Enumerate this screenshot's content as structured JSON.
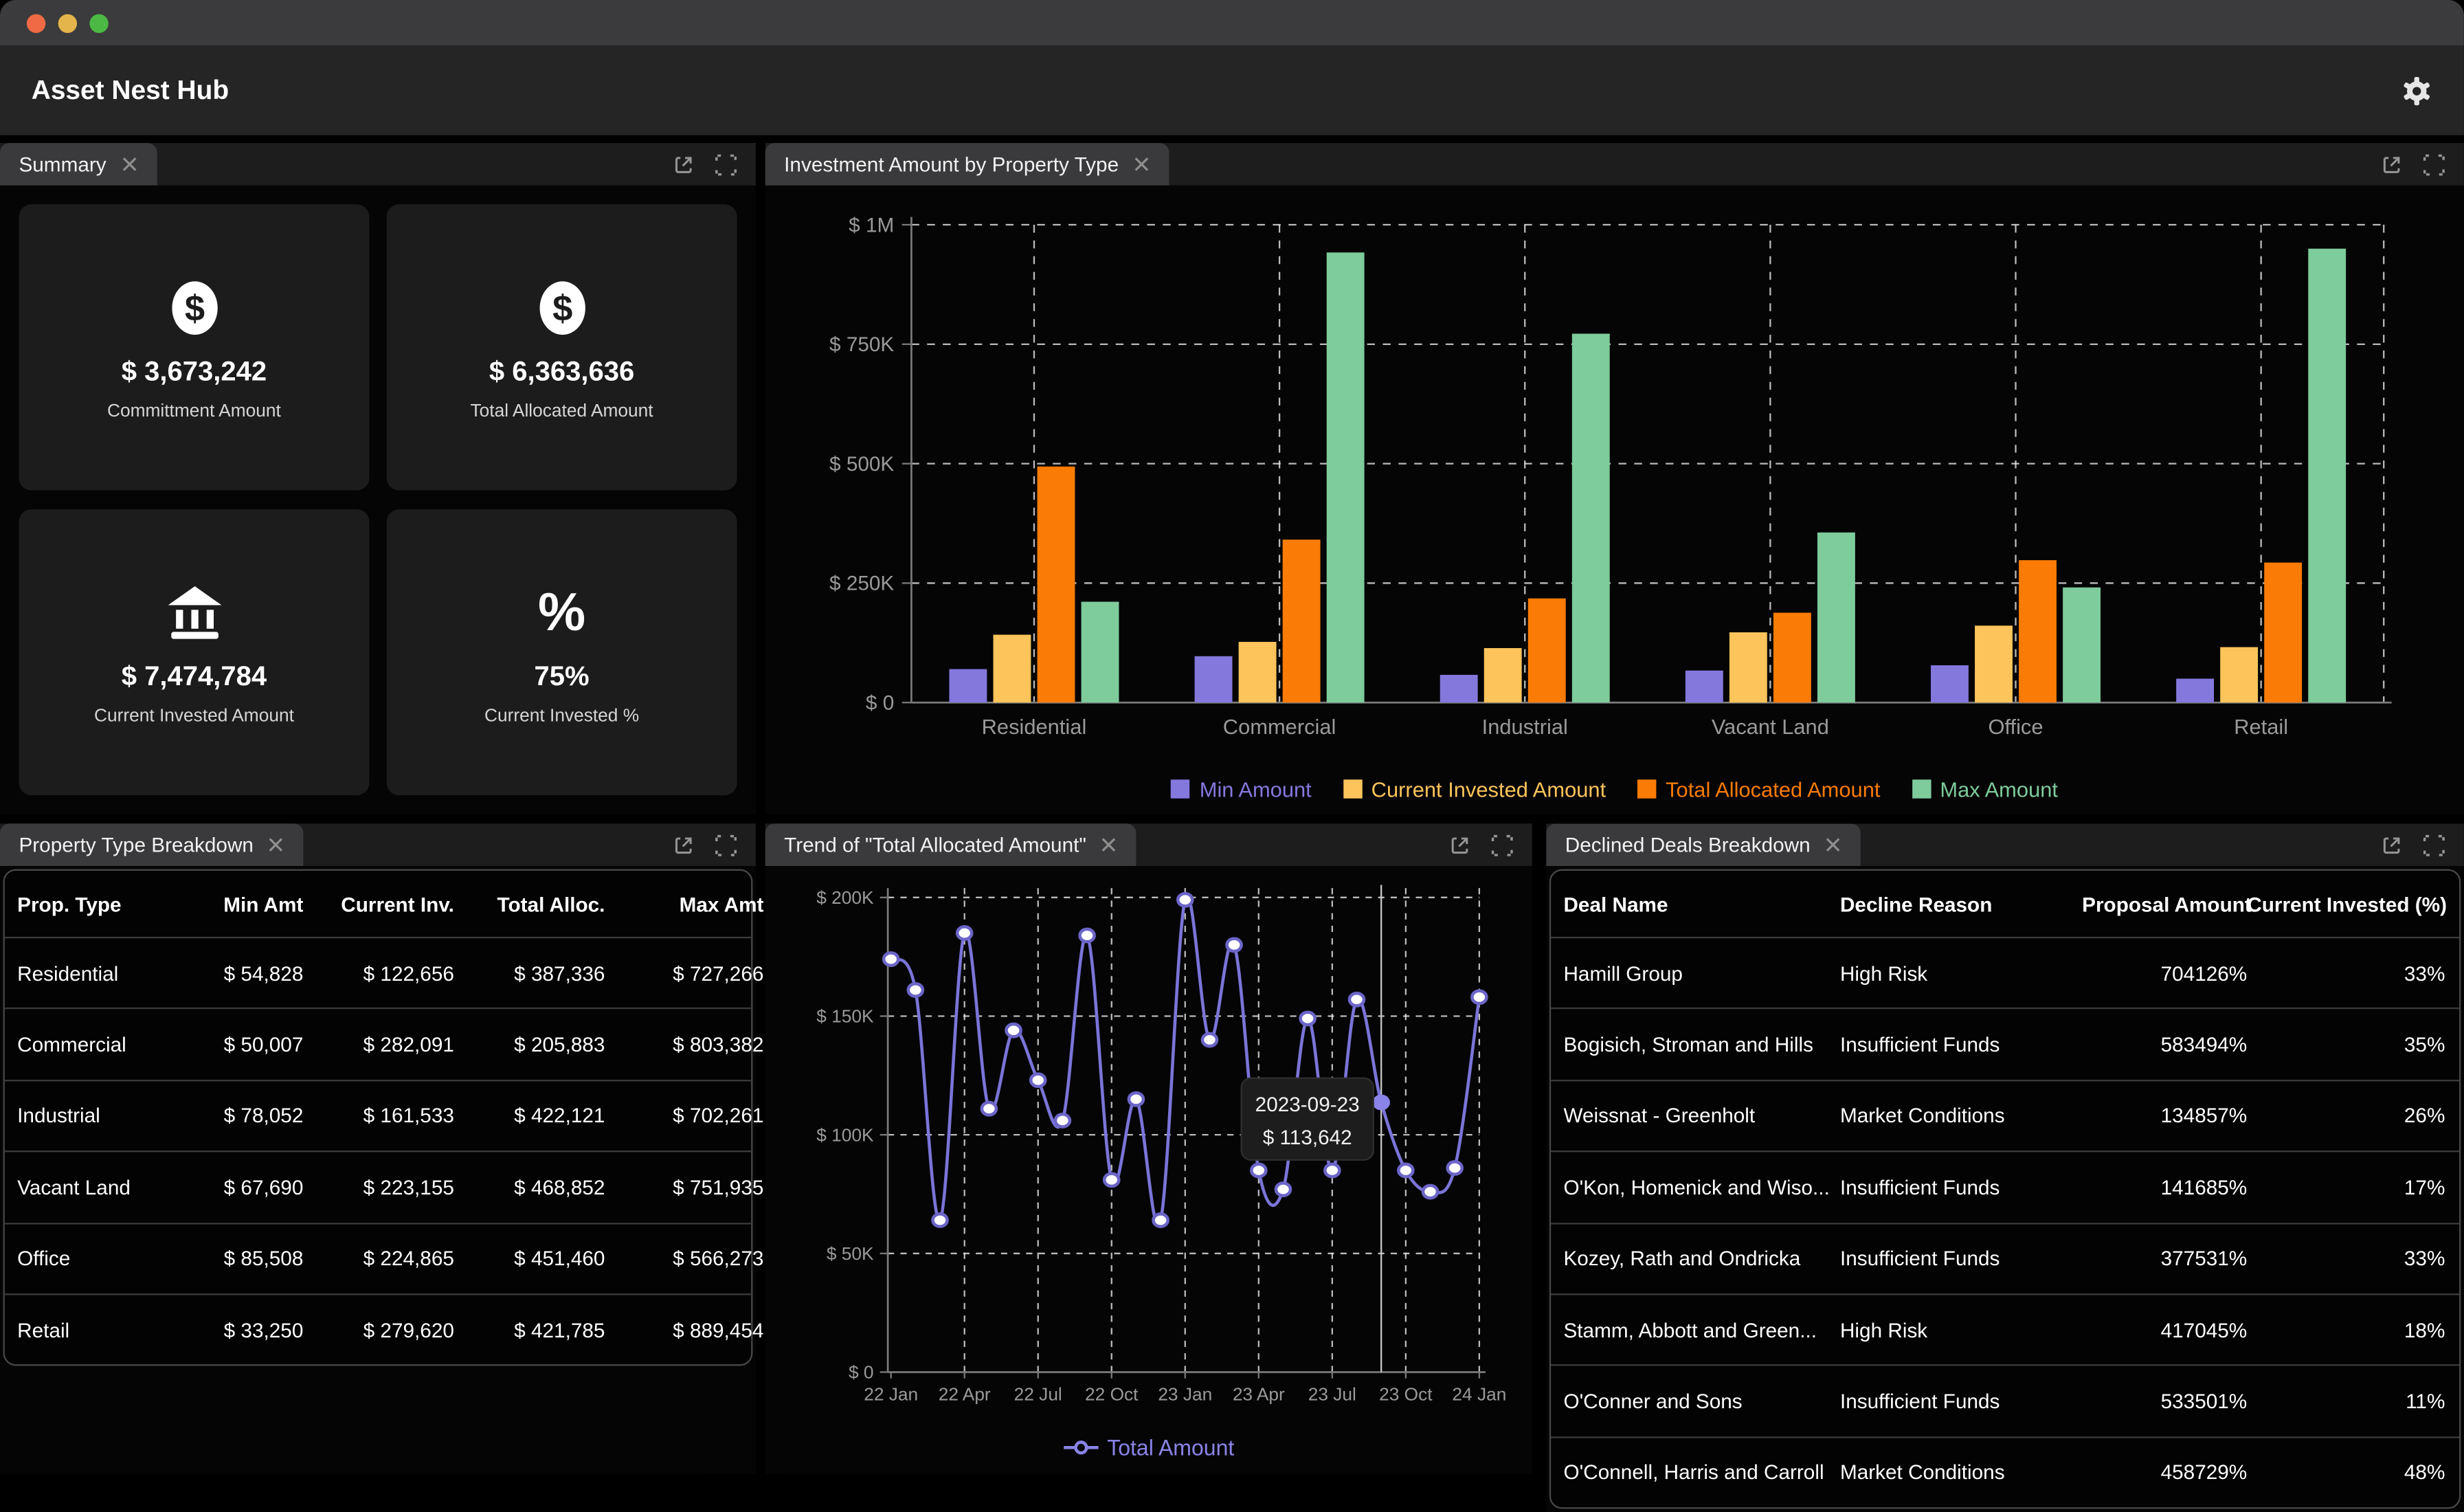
{
  "window": {
    "title": "Asset Nest Hub"
  },
  "glyphs": {
    "dollar": "$",
    "percent": "%"
  },
  "colors": {
    "traffic_lights": [
      "#ef6a45",
      "#e3b54a",
      "#4cb944"
    ],
    "trend_line": "#7b74d8",
    "trend_legend_text": "#8b84e8",
    "axis_text": "#9a9a9a",
    "grid_line": "#e8e8e8"
  },
  "panels": {
    "summary": {
      "title": "Summary",
      "cards": [
        {
          "icon": "dollar-circle-icon",
          "value": "$ 3,673,242",
          "label": "Committment Amount"
        },
        {
          "icon": "dollar-circle-icon",
          "value": "$ 6,363,636",
          "label": "Total Allocated Amount"
        },
        {
          "icon": "bank-icon",
          "value": "$ 7,474,784",
          "label": "Current Invested Amount"
        },
        {
          "icon": "percent-icon",
          "value": "75%",
          "label": "Current Invested %"
        }
      ]
    },
    "investment": {
      "title": "Investment Amount by Property Type"
    },
    "property_breakdown": {
      "title": "Property Type Breakdown",
      "columns": [
        "Prop. Type",
        "Min Amt",
        "Current Inv.",
        "Total Alloc.",
        "Max Amt"
      ],
      "rows": [
        [
          "Residential",
          "$ 54,828",
          "$ 122,656",
          "$ 387,336",
          "$ 727,266"
        ],
        [
          "Commercial",
          "$ 50,007",
          "$ 282,091",
          "$ 205,883",
          "$ 803,382"
        ],
        [
          "Industrial",
          "$ 78,052",
          "$ 161,533",
          "$ 422,121",
          "$ 702,261"
        ],
        [
          "Vacant Land",
          "$ 67,690",
          "$ 223,155",
          "$ 468,852",
          "$ 751,935"
        ],
        [
          "Office",
          "$ 85,508",
          "$ 224,865",
          "$ 451,460",
          "$ 566,273"
        ],
        [
          "Retail",
          "$ 33,250",
          "$ 279,620",
          "$ 421,785",
          "$ 889,454"
        ]
      ]
    },
    "trend": {
      "title": "Trend of \"Total Allocated Amount\""
    },
    "declined": {
      "title": "Declined Deals Breakdown",
      "columns": [
        "Deal Name",
        "Decline Reason",
        "Proposal Amount",
        "Current Invested (%)"
      ],
      "rows": [
        [
          "Hamill Group",
          "High Risk",
          "704126%",
          "33%"
        ],
        [
          "Bogisich, Stroman and Hills",
          "Insufficient Funds",
          "583494%",
          "35%"
        ],
        [
          "Weissnat - Greenholt",
          "Market Conditions",
          "134857%",
          "26%"
        ],
        [
          "O'Kon, Homenick and Wiso...",
          "Insufficient Funds",
          "141685%",
          "17%"
        ],
        [
          "Kozey, Rath and Ondricka",
          "Insufficient Funds",
          "377531%",
          "33%"
        ],
        [
          "Stamm, Abbott and Green...",
          "High Risk",
          "417045%",
          "18%"
        ],
        [
          "O'Conner and Sons",
          "Insufficient Funds",
          "533501%",
          "11%"
        ],
        [
          "O'Connell, Harris and Carroll",
          "Market Conditions",
          "458729%",
          "48%"
        ]
      ]
    }
  },
  "chart_data": [
    {
      "type": "bar",
      "title": "Investment Amount by Property Type",
      "categories": [
        "Residential",
        "Commercial",
        "Industrial",
        "Vacant Land",
        "Office",
        "Retail"
      ],
      "series": [
        {
          "name": "Min Amount",
          "color": "#8478dd",
          "values": [
            70000,
            97000,
            58000,
            67000,
            78000,
            50000
          ]
        },
        {
          "name": "Current Invested Amount",
          "color": "#fcc45b",
          "values": [
            142000,
            127000,
            114000,
            147000,
            161000,
            116000
          ]
        },
        {
          "name": "Total Allocated Amount",
          "color": "#fa7b05",
          "values": [
            494000,
            341000,
            218000,
            188000,
            298000,
            293000
          ]
        },
        {
          "name": "Max Amount",
          "color": "#7ecb9c",
          "values": [
            211000,
            942000,
            772000,
            356000,
            241000,
            950000
          ]
        }
      ],
      "ylim": [
        0,
        1000000
      ],
      "yticks": [
        "$ 0",
        "$ 250K",
        "$ 500K",
        "$ 750K",
        "$ 1M"
      ],
      "xlabel": "",
      "ylabel": "",
      "grid": "dashed",
      "legend_position": "bottom"
    },
    {
      "type": "line",
      "title": "Trend of \"Total Allocated Amount\"",
      "series_name": "Total Amount",
      "color": "#7b74d8",
      "x": [
        "2022-01",
        "2022-02",
        "2022-03",
        "2022-04",
        "2022-05",
        "2022-06",
        "2022-07",
        "2022-08",
        "2022-09",
        "2022-10",
        "2022-11",
        "2022-12",
        "2023-01",
        "2023-02",
        "2023-03",
        "2023-04",
        "2023-05",
        "2023-06",
        "2023-07",
        "2023-08",
        "2023-09",
        "2023-10",
        "2023-11",
        "2023-12",
        "2024-01"
      ],
      "values": [
        174000,
        161000,
        64000,
        185000,
        111000,
        144000,
        123000,
        106000,
        184000,
        81000,
        115000,
        64000,
        199000,
        140000,
        180000,
        85000,
        77000,
        149000,
        85000,
        157000,
        113642,
        85000,
        76000,
        86000,
        158000
      ],
      "xticks": [
        "22 Jan",
        "22 Apr",
        "22 Jul",
        "22 Oct",
        "23 Jan",
        "23 Apr",
        "23 Jul",
        "23 Oct",
        "24 Jan"
      ],
      "ylim": [
        0,
        200000
      ],
      "yticks": [
        "$ 0",
        "$ 50K",
        "$ 100K",
        "$ 150K",
        "$ 200K"
      ],
      "grid": "dashed",
      "legend_position": "bottom",
      "hover": {
        "index": 20,
        "label": "2023-09-23",
        "value_label": "$ 113,642"
      }
    }
  ]
}
